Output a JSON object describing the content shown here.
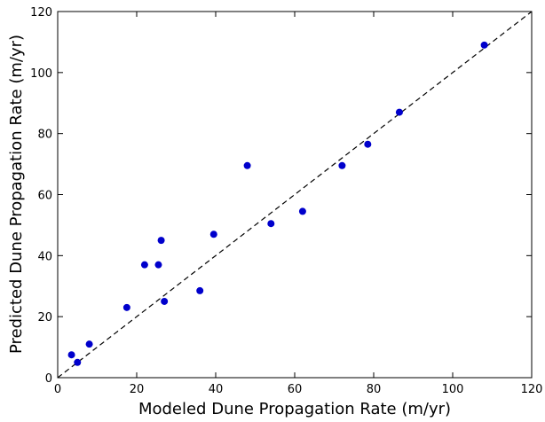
{
  "chart_data": {
    "type": "scatter",
    "title": "",
    "xlabel": "Modeled Dune Propagation Rate (m/yr)",
    "ylabel": "Predicted Dune Propagation Rate (m/yr)",
    "xlim": [
      0,
      120
    ],
    "ylim": [
      0,
      120
    ],
    "xticks": [
      0,
      20,
      40,
      60,
      80,
      100,
      120
    ],
    "yticks": [
      0,
      20,
      40,
      60,
      80,
      100,
      120
    ],
    "grid": false,
    "reference_line": {
      "style": "dashed",
      "color": "#000000",
      "x": [
        0,
        120
      ],
      "y": [
        0,
        120
      ]
    },
    "series": [
      {
        "color": "#0000cc",
        "x": [
          3.5,
          5,
          8,
          17.5,
          22,
          25.5,
          26.2,
          27,
          36,
          39.5,
          48,
          54,
          62,
          72,
          78.5,
          86.5,
          108
        ],
        "y": [
          7.5,
          5,
          11,
          23,
          37,
          37,
          45,
          25,
          28.5,
          47,
          69.5,
          50.5,
          54.5,
          69.5,
          76.5,
          87,
          109
        ]
      }
    ]
  }
}
